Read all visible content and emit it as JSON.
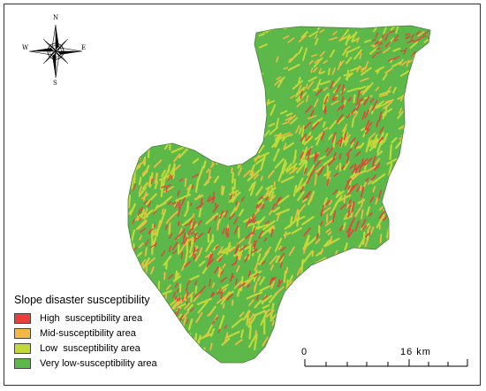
{
  "compass": {
    "north": "N",
    "south": "S",
    "east": "E",
    "west": "W"
  },
  "legend": {
    "title": "Slope disaster susceptibility",
    "items": [
      {
        "label": "High  susceptibility area",
        "color": "#e8403a"
      },
      {
        "label": "Mid-susceptibility area",
        "color": "#f4b944"
      },
      {
        "label": "Low  susceptibility area",
        "color": "#c3d93a"
      },
      {
        "label": "Very low-susceptibility area",
        "color": "#5cb848"
      }
    ]
  },
  "scale_bar": {
    "start_label": "0",
    "end_label": "16 km"
  },
  "colors": {
    "very_low": "#5cb848",
    "low": "#c3d93a",
    "mid": "#f4b944",
    "high": "#e8403a"
  }
}
